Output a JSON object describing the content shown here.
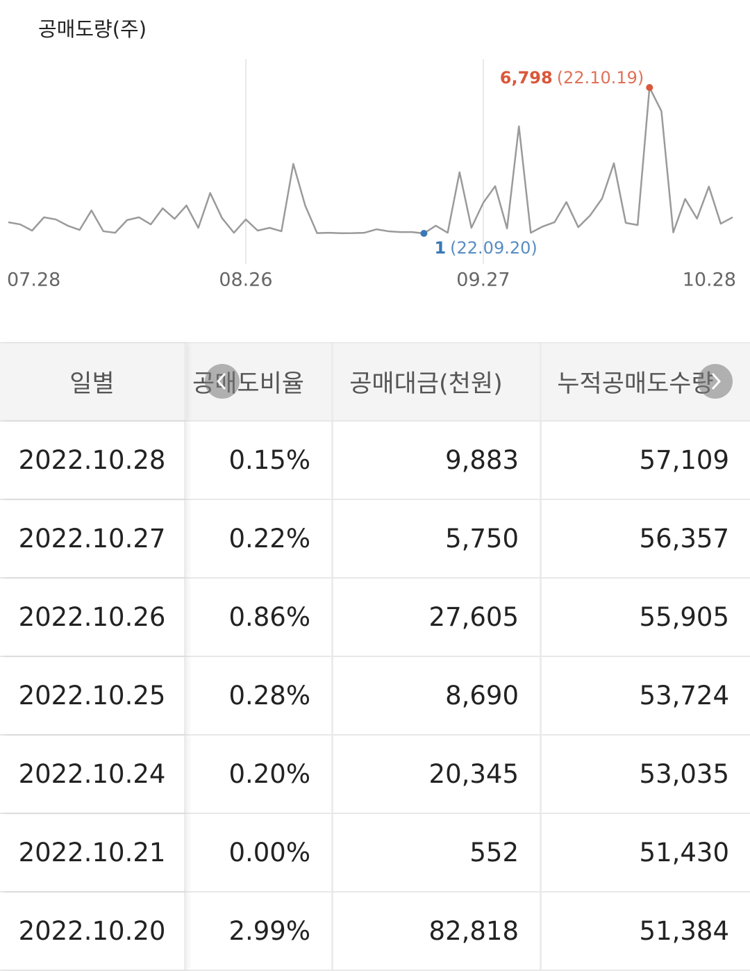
{
  "chart_data": {
    "type": "line",
    "title": "공매도량(주)",
    "categories": [
      "07.28",
      null,
      null,
      null,
      null,
      null,
      null,
      null,
      null,
      null,
      null,
      null,
      null,
      null,
      null,
      null,
      null,
      null,
      null,
      null,
      "08.26",
      null,
      null,
      null,
      null,
      null,
      null,
      null,
      null,
      null,
      null,
      null,
      null,
      null,
      null,
      null,
      null,
      null,
      null,
      null,
      "09.27",
      null,
      null,
      null,
      null,
      null,
      null,
      null,
      null,
      null,
      null,
      null,
      null,
      null,
      null,
      null,
      null,
      null,
      null,
      null,
      null,
      "10.28"
    ],
    "values": [
      520,
      420,
      130,
      750,
      650,
      360,
      160,
      1070,
      100,
      30,
      620,
      750,
      420,
      1170,
      680,
      1300,
      260,
      1880,
      710,
      30,
      650,
      130,
      260,
      100,
      3240,
      1300,
      15,
      30,
      8,
      12,
      30,
      190,
      100,
      60,
      60,
      1,
      360,
      30,
      2850,
      260,
      1430,
      2200,
      230,
      4990,
      30,
      320,
      520,
      1460,
      290,
      840,
      1620,
      3270,
      490,
      390,
      6798,
      5700,
      46,
      1605,
      689,
      2181,
      452,
      752
    ],
    "value_labels": [
      null,
      null,
      null,
      null,
      null,
      null,
      null,
      null,
      null,
      null,
      null,
      null,
      null,
      null,
      null,
      null,
      null,
      null,
      null,
      null,
      null,
      null,
      null,
      null,
      null,
      null,
      null,
      null,
      null,
      null,
      null,
      null,
      null,
      null,
      null,
      null,
      null,
      null,
      null,
      null,
      null,
      null,
      null,
      null,
      null,
      null,
      null,
      null,
      null,
      null,
      null,
      null,
      null,
      null,
      "6,798",
      null,
      null,
      null,
      null,
      null,
      null,
      null
    ],
    "annotations": {
      "max": "(22.10.19)",
      "min": "(22.09.20)"
    },
    "color": "#9a9a9a",
    "max_color": "#d9583b",
    "min_color": "#3a78b8",
    "x_grid": true
  },
  "table": {
    "header": [
      "일별",
      "공매도비율",
      "공매대금(천원)",
      "누적공매도수량"
    ],
    "rows": [
      [
        "2022.10.28",
        "0.15%",
        "9,883",
        "57,109"
      ],
      [
        "2022.10.27",
        "0.22%",
        "5,750",
        "56,357"
      ],
      [
        "2022.10.26",
        "0.86%",
        "27,605",
        "55,905"
      ],
      [
        "2022.10.25",
        "0.28%",
        "8,690",
        "53,724"
      ],
      [
        "2022.10.24",
        "0.20%",
        "20,345",
        "53,035"
      ],
      [
        "2022.10.21",
        "0.00%",
        "552",
        "51,430"
      ],
      [
        "2022.10.20",
        "2.99%",
        "82,818",
        "51,384"
      ]
    ]
  }
}
